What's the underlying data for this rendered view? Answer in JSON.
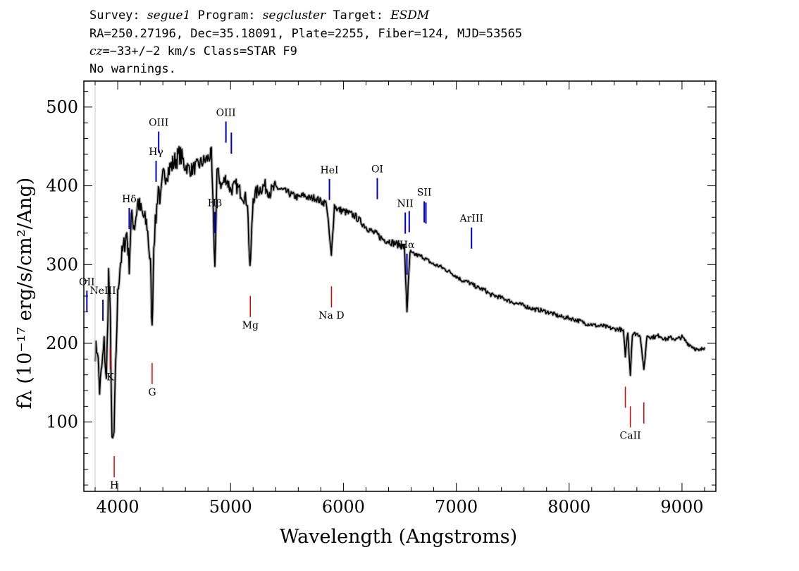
{
  "header": {
    "line1": {
      "survey_label": "Survey: ",
      "survey": "segue1",
      "program_label": " Program: ",
      "program": "segcluster",
      "target_label": " Target: ",
      "target": "ESDM"
    },
    "line2": "RA=250.27196, Dec=35.18091, Plate=2255, Fiber=124, MJD=53565",
    "line3": {
      "cz_label": "cz",
      "cz_value": "=−33+/−2 km/s Class=STAR F9"
    },
    "line4": "No warnings."
  },
  "chart_data": {
    "type": "line",
    "xlabel": "Wavelength (Angstroms)",
    "ylabel": "fλ (10⁻¹⁷ erg/s/cm²/Ang)",
    "xlim": [
      3700,
      9300
    ],
    "ylim": [
      12,
      533
    ],
    "x_ticks": [
      4000,
      5000,
      6000,
      7000,
      8000,
      9000
    ],
    "y_ticks": [
      100,
      200,
      300,
      400,
      500
    ],
    "colors": {
      "spectrum": "#000000",
      "error": "#b0b0b0",
      "emission": "#0000cc",
      "absorption": "#dd0000"
    },
    "series": [
      {
        "points": [
          [
            3800,
            190
          ],
          [
            3820,
            195
          ],
          [
            3840,
            140
          ],
          [
            3860,
            170
          ],
          [
            3880,
            200
          ],
          [
            3900,
            150
          ],
          [
            3920,
            290
          ],
          [
            3935,
            230
          ],
          [
            3950,
            70
          ],
          [
            3968,
            85
          ],
          [
            3980,
            160
          ],
          [
            4000,
            260
          ],
          [
            4020,
            300
          ],
          [
            4050,
            320
          ],
          [
            4080,
            340
          ],
          [
            4102,
            300
          ],
          [
            4120,
            360
          ],
          [
            4150,
            350
          ],
          [
            4180,
            380
          ],
          [
            4200,
            370
          ],
          [
            4230,
            360
          ],
          [
            4260,
            350
          ],
          [
            4290,
            300
          ],
          [
            4305,
            215
          ],
          [
            4320,
            330
          ],
          [
            4340,
            360
          ],
          [
            4360,
            400
          ],
          [
            4380,
            380
          ],
          [
            4400,
            410
          ],
          [
            4450,
            420
          ],
          [
            4500,
            430
          ],
          [
            4550,
            440
          ],
          [
            4600,
            425
          ],
          [
            4650,
            420
          ],
          [
            4700,
            425
          ],
          [
            4750,
            430
          ],
          [
            4800,
            435
          ],
          [
            4830,
            440
          ],
          [
            4861,
            295
          ],
          [
            4880,
            420
          ],
          [
            4920,
            400
          ],
          [
            4960,
            410
          ],
          [
            5000,
            395
          ],
          [
            5050,
            400
          ],
          [
            5100,
            390
          ],
          [
            5150,
            380
          ],
          [
            5172,
            290
          ],
          [
            5200,
            385
          ],
          [
            5250,
            395
          ],
          [
            5300,
            400
          ],
          [
            5350,
            392
          ],
          [
            5400,
            398
          ],
          [
            5450,
            395
          ],
          [
            5500,
            392
          ],
          [
            5550,
            388
          ],
          [
            5600,
            385
          ],
          [
            5650,
            388
          ],
          [
            5700,
            384
          ],
          [
            5750,
            385
          ],
          [
            5800,
            380
          ],
          [
            5850,
            378
          ],
          [
            5893,
            310
          ],
          [
            5920,
            375
          ],
          [
            5950,
            370
          ],
          [
            6000,
            368
          ],
          [
            6050,
            365
          ],
          [
            6100,
            362
          ],
          [
            6150,
            355
          ],
          [
            6200,
            348
          ],
          [
            6250,
            342
          ],
          [
            6300,
            338
          ],
          [
            6350,
            332
          ],
          [
            6400,
            330
          ],
          [
            6450,
            327
          ],
          [
            6500,
            325
          ],
          [
            6540,
            322
          ],
          [
            6563,
            242
          ],
          [
            6590,
            315
          ],
          [
            6650,
            312
          ],
          [
            6700,
            310
          ],
          [
            6750,
            305
          ],
          [
            6800,
            300
          ],
          [
            6850,
            298
          ],
          [
            6900,
            294
          ],
          [
            6950,
            290
          ],
          [
            7000,
            285
          ],
          [
            7050,
            280
          ],
          [
            7100,
            278
          ],
          [
            7150,
            274
          ],
          [
            7200,
            270
          ],
          [
            7250,
            268
          ],
          [
            7300,
            262
          ],
          [
            7350,
            260
          ],
          [
            7400,
            258
          ],
          [
            7450,
            255
          ],
          [
            7500,
            252
          ],
          [
            7550,
            250
          ],
          [
            7600,
            248
          ],
          [
            7650,
            245
          ],
          [
            7700,
            243
          ],
          [
            7750,
            242
          ],
          [
            7800,
            240
          ],
          [
            7850,
            238
          ],
          [
            7900,
            235
          ],
          [
            7950,
            233
          ],
          [
            8000,
            232
          ],
          [
            8050,
            230
          ],
          [
            8100,
            228
          ],
          [
            8150,
            225
          ],
          [
            8200,
            224
          ],
          [
            8250,
            222
          ],
          [
            8300,
            222
          ],
          [
            8350,
            220
          ],
          [
            8400,
            218
          ],
          [
            8450,
            218
          ],
          [
            8480,
            215
          ],
          [
            8498,
            185
          ],
          [
            8520,
            215
          ],
          [
            8542,
            160
          ],
          [
            8560,
            212
          ],
          [
            8600,
            212
          ],
          [
            8630,
            210
          ],
          [
            8662,
            165
          ],
          [
            8690,
            210
          ],
          [
            8720,
            208
          ],
          [
            8760,
            208
          ],
          [
            8800,
            210
          ],
          [
            8850,
            205
          ],
          [
            8900,
            207
          ],
          [
            8950,
            205
          ],
          [
            9000,
            208
          ],
          [
            9050,
            200
          ],
          [
            9100,
            195
          ],
          [
            9150,
            190
          ],
          [
            9200,
            195
          ]
        ]
      }
    ],
    "emission_lines": [
      {
        "label": "OII",
        "wavelength": 3727
      },
      {
        "label": "NeIII",
        "wavelength": 3869
      },
      {
        "label": "Hδ",
        "wavelength": 4102
      },
      {
        "label": "Hγ",
        "wavelength": 4340
      },
      {
        "label": "OIII",
        "wavelength": 4363
      },
      {
        "label": "Hβ",
        "wavelength": 4861
      },
      {
        "label": "OIII",
        "wavelength": 4959
      },
      {
        "label": "OIII",
        "wavelength": 5007
      },
      {
        "label": "HeI",
        "wavelength": 5876
      },
      {
        "label": "OI",
        "wavelength": 6300
      },
      {
        "label": "NII",
        "wavelength": 6548
      },
      {
        "label": "Hα",
        "wavelength": 6563
      },
      {
        "label": "NII",
        "wavelength": 6583
      },
      {
        "label": "SII",
        "wavelength": 6716
      },
      {
        "label": "SII",
        "wavelength": 6731
      },
      {
        "label": "ArIII",
        "wavelength": 7135
      }
    ],
    "absorption_lines": [
      {
        "label": "K",
        "wavelength": 3934
      },
      {
        "label": "H",
        "wavelength": 3969
      },
      {
        "label": "G",
        "wavelength": 4305
      },
      {
        "label": "Mg",
        "wavelength": 5175
      },
      {
        "label": "Na D",
        "wavelength": 5894
      },
      {
        "label": "",
        "wavelength": 8498
      },
      {
        "label": "CaII",
        "wavelength": 8542
      },
      {
        "label": "",
        "wavelength": 8662
      }
    ]
  }
}
